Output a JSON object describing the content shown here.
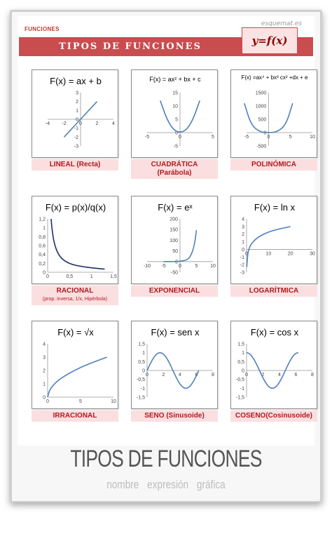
{
  "brand": "esquemat.es",
  "category": "FUNCIONES",
  "banner_title": "TIPOS DE FUNCIONES",
  "banner_formula": "y=f(x)",
  "footer": {
    "title": "TIPOS DE FUNCIONES",
    "subtitle": "nombre  expresión  gráfica"
  },
  "colors": {
    "banner": "#c94c4f",
    "label_bg": "#fbdfe0",
    "label_text": "#b0181e",
    "curve": "#4f81bd"
  },
  "cards": [
    {
      "id": "lineal",
      "equation": "F(x) = ax + b",
      "label": "LINEAL (Recta)",
      "sub": ""
    },
    {
      "id": "cuadratica",
      "equation": "F(x) = ax² + bx + c",
      "label": "CUADRÁTICA",
      "sub": "(Parábola)"
    },
    {
      "id": "polinomica",
      "equation": "F(x) =ax⁴ + bx³ cx² +dx + e",
      "label": "POLINÓMICA",
      "sub": ""
    },
    {
      "id": "racional",
      "equation": "F(x) = p(x)/q(x)",
      "label": "RACIONAL",
      "sub": "(prop. inversa, 1/x, Hipérbola)"
    },
    {
      "id": "exponencial",
      "equation": "F(x) = eˣ",
      "label": "EXPONENCIAL",
      "sub": ""
    },
    {
      "id": "logaritmica",
      "equation": "F(x) = ln x",
      "label": "LOGARÍTMICA",
      "sub": ""
    },
    {
      "id": "irracional",
      "equation": "F(x) = √x",
      "label": "IRRACIONAL",
      "sub": ""
    },
    {
      "id": "seno",
      "equation": "F(x) = sen x",
      "label": "SENO (Sinusoide)",
      "sub": ""
    },
    {
      "id": "coseno",
      "equation": "F(x) = cos x",
      "label": "COSENO(Cosinusoide)",
      "sub": ""
    }
  ],
  "chart_data": [
    {
      "type": "line",
      "ylim": [
        -3,
        3
      ],
      "xlim": [
        -4,
        4
      ],
      "x_ticks": [
        "-4",
        "-2",
        "0",
        "2",
        "4"
      ],
      "y_ticks": [
        "3",
        "2",
        "1",
        "0",
        "-1",
        "-2",
        "-3"
      ],
      "x": [
        -2,
        2
      ],
      "y": [
        -2,
        2
      ]
    },
    {
      "type": "line",
      "ylim": [
        -5,
        15
      ],
      "xlim": [
        -5,
        5
      ],
      "x_ticks": [
        "-5",
        "0",
        "5"
      ],
      "y_ticks": [
        "15",
        "10",
        "5",
        "0",
        "-5"
      ],
      "x": [
        -3,
        -2,
        -1,
        0,
        1,
        2,
        3
      ],
      "y": [
        12,
        5,
        1,
        0,
        1,
        5,
        12
      ]
    },
    {
      "type": "line",
      "ylim": [
        -500,
        1500
      ],
      "xlim": [
        -5,
        10
      ],
      "x_ticks": [
        "-5",
        "0",
        "5",
        "10"
      ],
      "y_ticks": [
        "1500",
        "1000",
        "500",
        "0",
        "-500"
      ],
      "x": [
        -5.5,
        -4,
        -2,
        0,
        2,
        4,
        5.5
      ],
      "y": [
        1100,
        300,
        20,
        0,
        20,
        300,
        1100
      ]
    },
    {
      "type": "line",
      "ylim": [
        0,
        1.2
      ],
      "xlim": [
        0,
        1.5
      ],
      "x_ticks": [
        "0",
        "0,5",
        "1",
        "1,5"
      ],
      "y_ticks": [
        "1,2",
        "1",
        "0,8",
        "0,6",
        "0,4",
        "0,2",
        "0"
      ],
      "x": [
        0.08,
        0.1,
        0.15,
        0.25,
        0.4,
        0.6,
        0.9,
        1.3
      ],
      "y": [
        1.2,
        0.96,
        0.64,
        0.38,
        0.24,
        0.16,
        0.11,
        0.07
      ]
    },
    {
      "type": "line",
      "ylim": [
        -50,
        200
      ],
      "xlim": [
        -10,
        10
      ],
      "x_ticks": [
        "-10",
        "-5",
        "0",
        "5",
        "10"
      ],
      "y_ticks": [
        "200",
        "150",
        "100",
        "50",
        "0",
        "-50"
      ],
      "x": [
        -5,
        -2,
        0,
        2,
        3,
        4,
        4.6,
        5
      ],
      "y": [
        0,
        0.1,
        1,
        7,
        20,
        55,
        100,
        148
      ]
    },
    {
      "type": "line",
      "ylim": [
        -3,
        4
      ],
      "xlim": [
        0,
        30
      ],
      "x_ticks": [
        "0",
        "10",
        "20",
        "30"
      ],
      "y_ticks": [
        "4",
        "3",
        "2",
        "1",
        "0",
        "-1",
        "-2",
        "-3"
      ],
      "x": [
        0.1,
        0.5,
        1,
        2,
        5,
        10,
        15,
        20
      ],
      "y": [
        -2.3,
        -0.7,
        0,
        0.7,
        1.6,
        2.3,
        2.7,
        3.0
      ]
    },
    {
      "type": "line",
      "ylim": [
        0,
        4
      ],
      "xlim": [
        0,
        10
      ],
      "x_ticks": [
        "0",
        "5",
        "10"
      ],
      "y_ticks": [
        "4",
        "3",
        "2",
        "1",
        "0"
      ],
      "x": [
        0,
        0.25,
        1,
        2,
        4,
        6,
        9
      ],
      "y": [
        0,
        0.5,
        1,
        1.41,
        2,
        2.45,
        3
      ]
    },
    {
      "type": "line",
      "ylim": [
        -1.5,
        1.5
      ],
      "xlim": [
        0,
        8
      ],
      "x_ticks": [
        "0",
        "2",
        "4",
        "6",
        "8"
      ],
      "y_ticks": [
        "1,5",
        "1",
        "0,5",
        "0",
        "-0,5",
        "-1",
        "-1,5"
      ],
      "fn": "sin",
      "xrange": [
        0,
        6.28
      ]
    },
    {
      "type": "line",
      "ylim": [
        -1.5,
        1.5
      ],
      "xlim": [
        0,
        8
      ],
      "x_ticks": [
        "0",
        "2",
        "4",
        "6",
        "8"
      ],
      "y_ticks": [
        "1,5",
        "1",
        "0,5",
        "0",
        "-0,5",
        "-1",
        "-1,5"
      ],
      "fn": "cos",
      "xrange": [
        0,
        6.28
      ]
    }
  ]
}
